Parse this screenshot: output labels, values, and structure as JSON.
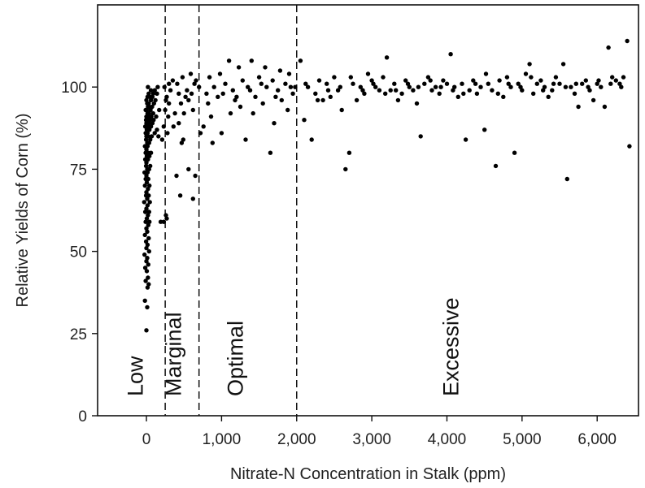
{
  "chart_data": {
    "type": "scatter",
    "title": "",
    "xlabel": "Nitrate-N Concentration in Stalk (ppm)",
    "ylabel": "Relative Yields of Corn (%)",
    "xlim": [
      -650,
      6550
    ],
    "ylim": [
      0,
      125
    ],
    "x_ticks": [
      0,
      1000,
      2000,
      3000,
      4000,
      5000,
      6000
    ],
    "x_tick_labels": [
      "0",
      "1,000",
      "2,000",
      "3,000",
      "4,000",
      "5,000",
      "6,000"
    ],
    "y_ticks": [
      0,
      25,
      50,
      75,
      100
    ],
    "y_tick_labels": [
      "0",
      "25",
      "50",
      "75",
      "100"
    ],
    "grid": false,
    "thresholds": [
      250,
      700,
      2000
    ],
    "regions": [
      {
        "label": "Low",
        "x": -50
      },
      {
        "label": "Marginal",
        "x": 460
      },
      {
        "label": "Optimal",
        "x": 1280
      },
      {
        "label": "Excessive",
        "x": 4150
      }
    ],
    "series": [
      {
        "values": [
          [
            0,
            26
          ],
          [
            10,
            33
          ],
          [
            -20,
            35
          ],
          [
            15,
            39
          ],
          [
            30,
            40
          ],
          [
            -10,
            41
          ],
          [
            20,
            42
          ],
          [
            5,
            44
          ],
          [
            -15,
            45
          ],
          [
            25,
            46
          ],
          [
            0,
            47
          ],
          [
            10,
            48
          ],
          [
            -25,
            49
          ],
          [
            35,
            50
          ],
          [
            0,
            51
          ],
          [
            15,
            52
          ],
          [
            -5,
            53
          ],
          [
            30,
            54
          ],
          [
            -20,
            55
          ],
          [
            10,
            56
          ],
          [
            0,
            57
          ],
          [
            25,
            58
          ],
          [
            -10,
            59
          ],
          [
            40,
            59
          ],
          [
            5,
            60
          ],
          [
            20,
            61
          ],
          [
            -15,
            62
          ],
          [
            35,
            62
          ],
          [
            0,
            63
          ],
          [
            15,
            64
          ],
          [
            -30,
            65
          ],
          [
            45,
            65
          ],
          [
            10,
            66
          ],
          [
            -5,
            67
          ],
          [
            30,
            67
          ],
          [
            0,
            68
          ],
          [
            20,
            69
          ],
          [
            -20,
            70
          ],
          [
            40,
            70
          ],
          [
            5,
            71
          ],
          [
            -10,
            72
          ],
          [
            25,
            72
          ],
          [
            0,
            73
          ],
          [
            15,
            74
          ],
          [
            -25,
            74
          ],
          [
            35,
            75
          ],
          [
            10,
            75
          ],
          [
            -5,
            76
          ],
          [
            50,
            76
          ],
          [
            0,
            77
          ],
          [
            20,
            78
          ],
          [
            -15,
            78
          ],
          [
            40,
            79
          ],
          [
            5,
            79
          ],
          [
            25,
            80
          ],
          [
            -10,
            80
          ],
          [
            60,
            80
          ],
          [
            0,
            81
          ],
          [
            15,
            82
          ],
          [
            -20,
            82
          ],
          [
            35,
            83
          ],
          [
            10,
            83
          ],
          [
            50,
            84
          ],
          [
            -5,
            84
          ],
          [
            25,
            85
          ],
          [
            0,
            85
          ],
          [
            70,
            85
          ],
          [
            15,
            86
          ],
          [
            -10,
            86
          ],
          [
            40,
            87
          ],
          [
            5,
            87
          ],
          [
            60,
            88
          ],
          [
            20,
            88
          ],
          [
            -15,
            88
          ],
          [
            30,
            89
          ],
          [
            0,
            89
          ],
          [
            80,
            89
          ],
          [
            10,
            90
          ],
          [
            45,
            90
          ],
          [
            -5,
            90
          ],
          [
            25,
            91
          ],
          [
            65,
            91
          ],
          [
            0,
            91
          ],
          [
            15,
            92
          ],
          [
            90,
            92
          ],
          [
            35,
            92
          ],
          [
            5,
            93
          ],
          [
            55,
            93
          ],
          [
            -10,
            93
          ],
          [
            20,
            94
          ],
          [
            75,
            94
          ],
          [
            40,
            94
          ],
          [
            10,
            95
          ],
          [
            100,
            95
          ],
          [
            30,
            95
          ],
          [
            60,
            96
          ],
          [
            0,
            96
          ],
          [
            120,
            96
          ],
          [
            45,
            97
          ],
          [
            80,
            97
          ],
          [
            15,
            97
          ],
          [
            140,
            98
          ],
          [
            90,
            98
          ],
          [
            30,
            98
          ],
          [
            110,
            99
          ],
          [
            60,
            99
          ],
          [
            150,
            100
          ],
          [
            20,
            100
          ],
          [
            130,
            91
          ],
          [
            170,
            93
          ],
          [
            110,
            86
          ],
          [
            95,
            90
          ],
          [
            140,
            87
          ],
          [
            160,
            85
          ],
          [
            190,
            59
          ],
          [
            230,
            59
          ],
          [
            260,
            61
          ],
          [
            270,
            60
          ],
          [
            210,
            84
          ],
          [
            280,
            86
          ],
          [
            230,
            88
          ],
          [
            290,
            91
          ],
          [
            250,
            93
          ],
          [
            300,
            95
          ],
          [
            270,
            97
          ],
          [
            320,
            99
          ],
          [
            240,
            100
          ],
          [
            300,
            101
          ],
          [
            350,
            102
          ],
          [
            260,
            96
          ],
          [
            400,
            73
          ],
          [
            430,
            89
          ],
          [
            450,
            67
          ],
          [
            470,
            83
          ],
          [
            490,
            84
          ],
          [
            560,
            75
          ],
          [
            620,
            66
          ],
          [
            650,
            73
          ],
          [
            520,
            97
          ],
          [
            410,
            101
          ],
          [
            480,
            103
          ],
          [
            540,
            99
          ],
          [
            590,
            104
          ],
          [
            640,
            101
          ],
          [
            380,
            92
          ],
          [
            460,
            95
          ],
          [
            600,
            98
          ],
          [
            660,
            102
          ],
          [
            500,
            92
          ],
          [
            430,
            98
          ],
          [
            560,
            96
          ],
          [
            620,
            93
          ],
          [
            360,
            88
          ],
          [
            700,
            100
          ],
          [
            720,
            86
          ],
          [
            760,
            88
          ],
          [
            820,
            95
          ],
          [
            840,
            103
          ],
          [
            880,
            83
          ],
          [
            900,
            100
          ],
          [
            950,
            97
          ],
          [
            1000,
            86
          ],
          [
            1050,
            101
          ],
          [
            1100,
            108
          ],
          [
            1150,
            99
          ],
          [
            1180,
            96
          ],
          [
            1250,
            94
          ],
          [
            1280,
            102
          ],
          [
            1320,
            84
          ],
          [
            1350,
            100
          ],
          [
            1400,
            108
          ],
          [
            1450,
            97
          ],
          [
            1500,
            103
          ],
          [
            1550,
            95
          ],
          [
            1600,
            100
          ],
          [
            1650,
            80
          ],
          [
            1700,
            89
          ],
          [
            1750,
            99
          ],
          [
            1800,
            96
          ],
          [
            1850,
            101
          ],
          [
            1900,
            104
          ],
          [
            1950,
            98
          ],
          [
            800,
            98
          ],
          [
            980,
            104
          ],
          [
            1120,
            92
          ],
          [
            1230,
            106
          ],
          [
            1420,
            92
          ],
          [
            1580,
            106
          ],
          [
            1680,
            102
          ],
          [
            1780,
            105
          ],
          [
            1880,
            93
          ],
          [
            1980,
            100
          ],
          [
            860,
            91
          ],
          [
            1020,
            98
          ],
          [
            1200,
            97
          ],
          [
            1380,
            99
          ],
          [
            1530,
            101
          ],
          [
            1720,
            97
          ],
          [
            1920,
            100
          ],
          [
            2050,
            108
          ],
          [
            2100,
            90
          ],
          [
            2150,
            100
          ],
          [
            2200,
            84
          ],
          [
            2250,
            98
          ],
          [
            2300,
            102
          ],
          [
            2350,
            96
          ],
          [
            2400,
            101
          ],
          [
            2450,
            97
          ],
          [
            2500,
            103
          ],
          [
            2550,
            99
          ],
          [
            2600,
            93
          ],
          [
            2650,
            75
          ],
          [
            2700,
            80
          ],
          [
            2750,
            101
          ],
          [
            2800,
            96
          ],
          [
            2850,
            100
          ],
          [
            2900,
            98
          ],
          [
            2950,
            104
          ],
          [
            3000,
            102
          ],
          [
            3050,
            100
          ],
          [
            3100,
            99
          ],
          [
            3150,
            103
          ],
          [
            3200,
            109
          ],
          [
            3250,
            99
          ],
          [
            3300,
            101
          ],
          [
            3350,
            96
          ],
          [
            3400,
            98
          ],
          [
            3450,
            102
          ],
          [
            3500,
            100
          ],
          [
            3550,
            99
          ],
          [
            3600,
            95
          ],
          [
            3650,
            85
          ],
          [
            3700,
            101
          ],
          [
            3750,
            103
          ],
          [
            3800,
            99
          ],
          [
            3850,
            100
          ],
          [
            3900,
            98
          ],
          [
            3950,
            102
          ],
          [
            4000,
            101
          ],
          [
            4050,
            110
          ],
          [
            4100,
            100
          ],
          [
            4150,
            97
          ],
          [
            4200,
            101
          ],
          [
            4250,
            84
          ],
          [
            4300,
            99
          ],
          [
            4350,
            102
          ],
          [
            4400,
            98
          ],
          [
            4450,
            100
          ],
          [
            4500,
            87
          ],
          [
            4550,
            101
          ],
          [
            4600,
            99
          ],
          [
            4650,
            76
          ],
          [
            4700,
            102
          ],
          [
            4750,
            97
          ],
          [
            4800,
            103
          ],
          [
            4850,
            100
          ],
          [
            4900,
            80
          ],
          [
            4950,
            101
          ],
          [
            5000,
            99
          ],
          [
            5050,
            104
          ],
          [
            5100,
            107
          ],
          [
            5150,
            98
          ],
          [
            5200,
            101
          ],
          [
            5250,
            102
          ],
          [
            5300,
            100
          ],
          [
            5350,
            97
          ],
          [
            5400,
            99
          ],
          [
            5450,
            103
          ],
          [
            5500,
            101
          ],
          [
            5550,
            107
          ],
          [
            5600,
            72
          ],
          [
            5650,
            100
          ],
          [
            5700,
            98
          ],
          [
            5750,
            94
          ],
          [
            5800,
            101
          ],
          [
            5850,
            102
          ],
          [
            5900,
            99
          ],
          [
            5950,
            96
          ],
          [
            6000,
            101
          ],
          [
            6050,
            100
          ],
          [
            6100,
            94
          ],
          [
            6150,
            112
          ],
          [
            6200,
            103
          ],
          [
            6250,
            102
          ],
          [
            6300,
            101
          ],
          [
            6350,
            103
          ],
          [
            6400,
            114
          ],
          [
            6430,
            82
          ],
          [
            2120,
            101
          ],
          [
            2280,
            96
          ],
          [
            2420,
            99
          ],
          [
            2580,
            100
          ],
          [
            2720,
            103
          ],
          [
            2880,
            99
          ],
          [
            3020,
            101
          ],
          [
            3180,
            98
          ],
          [
            3320,
            99
          ],
          [
            3480,
            101
          ],
          [
            3620,
            100
          ],
          [
            3780,
            102
          ],
          [
            3920,
            100
          ],
          [
            4080,
            99
          ],
          [
            4220,
            98
          ],
          [
            4380,
            101
          ],
          [
            4520,
            104
          ],
          [
            4680,
            98
          ],
          [
            4820,
            101
          ],
          [
            4980,
            100
          ],
          [
            5120,
            103
          ],
          [
            5280,
            99
          ],
          [
            5420,
            101
          ],
          [
            5580,
            100
          ],
          [
            5720,
            101
          ],
          [
            5880,
            100
          ],
          [
            6020,
            102
          ],
          [
            6180,
            101
          ],
          [
            6320,
            100
          ]
        ]
      }
    ]
  }
}
